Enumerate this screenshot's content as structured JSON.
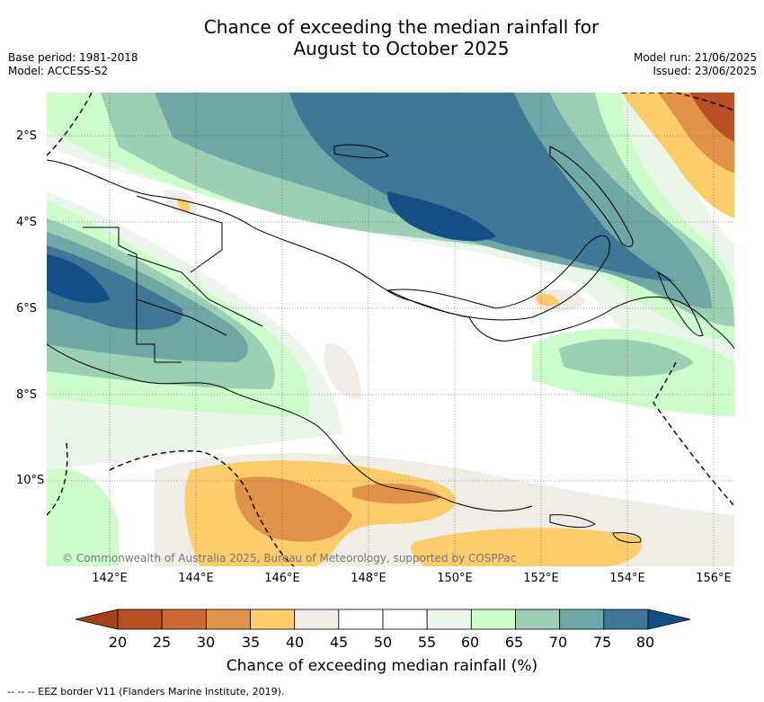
{
  "title": {
    "line1": "Chance of exceeding the median rainfall for",
    "line2": "August to October 2025"
  },
  "meta_left": {
    "base_period": "Base period: 1981-2018",
    "model": "Model: ACCESS-S2"
  },
  "meta_right": {
    "model_run": "Model run: 21/06/2025",
    "issued": "Issued: 23/06/2025"
  },
  "map": {
    "copyright": "© Commonwealth of Australia 2025, Bureau of Meteorology, supported by COSPPac",
    "lat_labels": [
      "2°S",
      "4°S",
      "6°S",
      "8°S",
      "10°S"
    ],
    "lon_labels": [
      "142°E",
      "144°E",
      "146°E",
      "148°E",
      "150°E",
      "152°E",
      "154°E",
      "156°E"
    ],
    "grid": true,
    "eez_border_style": "dashed"
  },
  "colorbar": {
    "ticks": [
      "20",
      "25",
      "30",
      "35",
      "40",
      "45",
      "50",
      "55",
      "60",
      "65",
      "70",
      "75",
      "80"
    ],
    "colors": [
      "#a8401c",
      "#b84f24",
      "#cc6a32",
      "#e09248",
      "#fecd6b",
      "#f0ece6",
      "#ffffff",
      "#ffffff",
      "#eaf6ea",
      "#ccfdcb",
      "#9ccfb4",
      "#6fa6a6",
      "#3f7896",
      "#134f86"
    ],
    "label": "Chance of exceeding median rainfall (%)"
  },
  "legend": {
    "eez": "--  --  -- EEZ border V11 (Flanders Marine Institute, 2019)."
  }
}
